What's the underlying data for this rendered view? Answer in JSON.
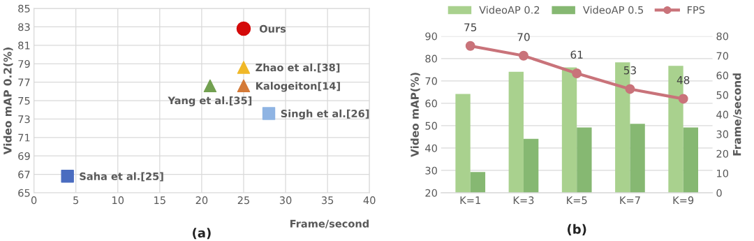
{
  "chart_data": [
    {
      "type": "scatter",
      "xlabel": "Frame/second",
      "ylabel": "Video mAP 0.2(%)",
      "xlim": [
        0,
        40
      ],
      "xticks": [
        0,
        5,
        10,
        15,
        20,
        25,
        30,
        35,
        40
      ],
      "ylim": [
        65,
        85
      ],
      "yticks": [
        65,
        67,
        69,
        71,
        73,
        75,
        77,
        79,
        81,
        83,
        85
      ],
      "grid": true,
      "annotations": [
        "(a)"
      ],
      "series": [
        {
          "name": "Ours",
          "color": "#d40a0a",
          "marker": "circle",
          "x": [
            25
          ],
          "values": [
            82.8
          ]
        },
        {
          "name": "Zhao et al.[38]",
          "color": "#f0b828",
          "marker": "triangle",
          "x": [
            25
          ],
          "values": [
            78.6
          ]
        },
        {
          "name": "Kalogeiton[14]",
          "color": "#d47a38",
          "marker": "triangle",
          "x": [
            25
          ],
          "values": [
            76.6
          ]
        },
        {
          "name": "Yang et al.[35]",
          "color": "#72a050",
          "marker": "triangle",
          "x": [
            21
          ],
          "values": [
            76.6
          ]
        },
        {
          "name": "Singh et al.[26]",
          "color": "#8fb4e3",
          "marker": "square",
          "x": [
            28
          ],
          "values": [
            73.6
          ]
        },
        {
          "name": "Saha et al.[25]",
          "color": "#4a6cc0",
          "marker": "square",
          "x": [
            4
          ],
          "values": [
            66.8
          ]
        }
      ]
    },
    {
      "type": "bar",
      "ylabel": "Video mAP(%)",
      "y2label": "Frame/second",
      "categories": [
        "K=1",
        "K=3",
        "K=5",
        "K=7",
        "K=9"
      ],
      "ylim": [
        20,
        90
      ],
      "yticks": [
        20,
        30,
        40,
        50,
        60,
        70,
        80,
        90
      ],
      "y2lim": [
        0,
        80
      ],
      "y2ticks": [
        0,
        10,
        20,
        30,
        40,
        50,
        60,
        70,
        80
      ],
      "grid": "y",
      "legend": "top",
      "annotations": [
        "(b)"
      ],
      "series": [
        {
          "name": "VideoAP 0.2",
          "color": "#a9d18e",
          "values": [
            64.2,
            74.1,
            76.0,
            78.3,
            76.7
          ]
        },
        {
          "name": "VideoAP 0.5",
          "color": "#86b872",
          "values": [
            29.3,
            44.1,
            49.2,
            50.8,
            49.2
          ]
        },
        {
          "name": "FPS",
          "type": "line",
          "axis": "y2",
          "marker": "circle",
          "color": "#c9737a",
          "values": [
            75,
            70,
            61,
            53,
            48
          ],
          "value_labels": [
            "75",
            "70",
            "61",
            "53",
            "48"
          ]
        }
      ]
    }
  ]
}
